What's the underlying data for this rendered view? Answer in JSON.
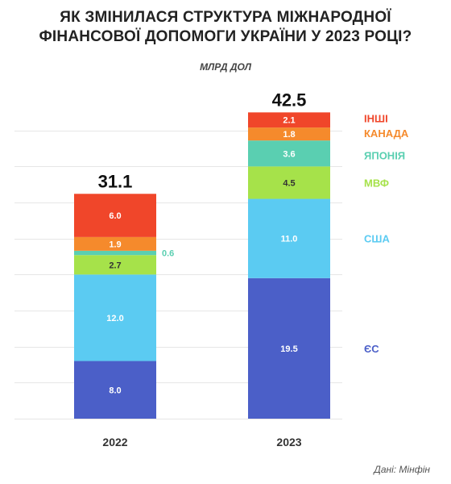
{
  "title_line1": "ЯК ЗМІНИЛАСЯ СТРУКТУРА МІЖНАРОДНОЇ",
  "title_line2": "ФІНАНСОВОЇ ДОПОМОГИ УКРАЇНИ У 2023 РОЦІ?",
  "subtitle": "МЛРД ДОЛ",
  "source": "Дані: Мінфін",
  "chart_data": {
    "type": "bar",
    "stacked": true,
    "categories": [
      "2022",
      "2023"
    ],
    "totals": [
      "31.1",
      "42.5"
    ],
    "ylim": [
      0,
      45
    ],
    "grid": true,
    "legend_placement": "right",
    "series": [
      {
        "name": "ЄС",
        "values": [
          8.0,
          19.5
        ],
        "labels": [
          "8.0",
          "19.5"
        ],
        "color": "#4B5FC8",
        "label_color": "#ffffff"
      },
      {
        "name": "США",
        "values": [
          12.0,
          11.0
        ],
        "labels": [
          "12.0",
          "11.0"
        ],
        "color": "#5BCBF2",
        "label_color": "#ffffff"
      },
      {
        "name": "МВФ",
        "values": [
          2.7,
          4.5
        ],
        "labels": [
          "2.7",
          "4.5"
        ],
        "color": "#A6E24A",
        "label_color": "#333333"
      },
      {
        "name": "ЯПОНІЯ",
        "values": [
          0.6,
          3.6
        ],
        "labels": [
          "0.6",
          "3.6"
        ],
        "color": "#5ACFB1",
        "label_color": "#ffffff"
      },
      {
        "name": "КАНАДА",
        "values": [
          1.9,
          1.8
        ],
        "labels": [
          "1.9",
          "1.8"
        ],
        "color": "#F58A2C",
        "label_color": "#ffffff"
      },
      {
        "name": "ІНШІ",
        "values": [
          6.0,
          2.1
        ],
        "labels": [
          "6.0",
          "2.1"
        ],
        "color": "#F0462A",
        "label_color": "#ffffff"
      }
    ]
  }
}
